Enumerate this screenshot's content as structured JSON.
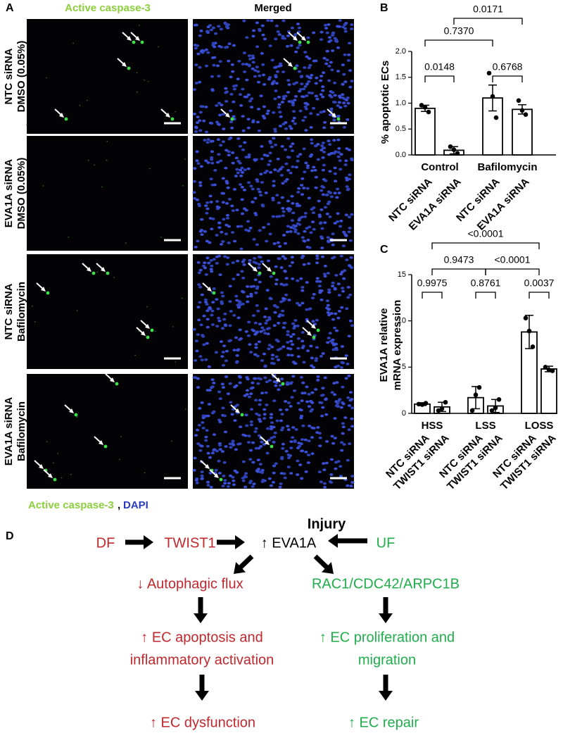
{
  "panel_a": {
    "label": "A",
    "columns": [
      "Active caspase-3",
      "Merged"
    ],
    "rows": [
      [
        "NTC siRNA",
        "DMSO (0.05%)"
      ],
      [
        "EVA1A siRNA",
        "DMSO (0.05%)"
      ],
      [
        "NTC siRNA",
        "Bafilomycin"
      ],
      [
        "EVA1A siRNA",
        "Bafilomycin"
      ]
    ],
    "legend": [
      "Active caspase-3",
      ",",
      "DAPI"
    ]
  },
  "chart_data": [
    {
      "type": "bar",
      "panel_label": "B",
      "y_label": [
        "% apoptotic ECs"
      ],
      "groups": [
        "Control",
        "Bafilomycin"
      ],
      "categories": [
        "NTC siRNA",
        "EVA1A siRNA",
        "NTC siRNA",
        "EVA1A siRNA"
      ],
      "values": [
        0.9,
        0.09,
        1.1,
        0.88
      ],
      "errors": [
        0.06,
        0.07,
        0.25,
        0.09
      ],
      "points": [
        [
          0.96,
          0.92,
          0.83
        ],
        [
          0.16,
          0.1,
          0.03
        ],
        [
          1.58,
          1.13,
          0.72
        ],
        [
          1.05,
          0.86,
          0.78
        ]
      ],
      "color": "#ffffff",
      "annotations": [
        "0.0148",
        "0.6768",
        "0.7370",
        "0.0171"
      ],
      "ylim": [
        0,
        2
      ],
      "yticks": [
        {
          "value": 0,
          "label": "0.0"
        },
        0.5,
        {
          "value": 1,
          "label": "1.0"
        },
        1.5,
        {
          "value": 2,
          "label": "2.0"
        }
      ]
    },
    {
      "type": "bar",
      "panel_label": "C",
      "y_label": [
        "EVA1A relative",
        "mRNA expression"
      ],
      "groups": [
        "HSS",
        "LSS",
        "LOSS"
      ],
      "categories": [
        "NTC siRNA",
        "TWIST1 siRNA",
        "NTC siRNA",
        "TWIST1 siRNA",
        "NTC siRNA",
        "TWIST1 siRNA"
      ],
      "values": [
        1.0,
        0.7,
        1.7,
        0.8,
        8.8,
        4.8
      ],
      "errors": [
        0.15,
        0.5,
        1.2,
        0.7,
        1.8,
        0.3
      ],
      "points": [
        [
          1.0,
          0.95,
          1.1
        ],
        [
          0.3,
          0.5,
          1.2
        ],
        [
          0.3,
          2.0,
          2.8
        ],
        [
          0.3,
          0.6,
          1.5
        ],
        [
          10.3,
          8.9,
          7.2
        ],
        [
          5.0,
          4.7,
          4.6
        ]
      ],
      "color": "#ffffff",
      "annotations": [
        "0.9975",
        "0.8761",
        "0.0037",
        "0.9473",
        "<0.0001",
        "<0.0001"
      ],
      "ylim": [
        0,
        15
      ],
      "yticks": [
        0,
        5,
        10,
        15
      ]
    }
  ],
  "panel_d": {
    "label": "D",
    "nodes": [
      "DF",
      "TWIST1",
      "↑ EVA1A",
      "Injury",
      "UF",
      "↓ Autophagic flux",
      "RAC1/CDC42/ARPC1B",
      "↑ EC apoptosis and",
      "inflammatory activation",
      "↑ EC proliferation and",
      "migration",
      "↑ EC dysfunction",
      "↑ EC repair"
    ]
  }
}
